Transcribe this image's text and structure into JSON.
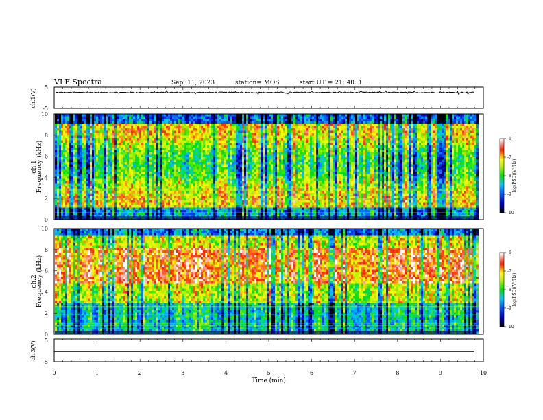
{
  "header": {
    "title": "VLF Spectra",
    "date": "Sep. 11, 2023",
    "station": "station= MOS",
    "start": "start  UT  =   21: 40: 1"
  },
  "chart_data": [
    {
      "type": "line",
      "panel": "ch1-waveform",
      "ylabel": "ch.1(V)",
      "ylim": [
        -5,
        5
      ],
      "yticks": [
        "5",
        "-5"
      ],
      "xlim": [
        0,
        10
      ],
      "series": [
        {
          "approx_level": 2.5,
          "noise": "small"
        }
      ]
    },
    {
      "type": "heatmap",
      "panel": "ch1-spectrogram",
      "ylabel": "ch.1\nFrequency (kHz)",
      "ylim": [
        0,
        10
      ],
      "yticks": [
        "0",
        "2",
        "4",
        "6",
        "8",
        "10"
      ],
      "xlim": [
        0,
        10
      ],
      "colorbar": {
        "label": "log(PSD)(V²/Hz)",
        "range": [
          -10,
          -6
        ],
        "ticks": [
          "-6",
          "-7",
          "-8",
          "-9",
          "-10"
        ]
      },
      "data_end_min": 9.85,
      "character": "broadband vertical striping across full 0-10 kHz band, intensity mostly -7 to -8"
    },
    {
      "type": "heatmap",
      "panel": "ch2-spectrogram",
      "ylabel": "ch.2\nFrequency (kHz)",
      "ylim": [
        0,
        10
      ],
      "yticks": [
        "0",
        "2",
        "4",
        "6",
        "8",
        "10"
      ],
      "xlim": [
        0,
        10
      ],
      "colorbar": {
        "label": "log(PSD)(V²/Hz)",
        "range": [
          -10,
          -6
        ],
        "ticks": [
          "-6",
          "-7",
          "-8",
          "-9",
          "-10"
        ]
      },
      "data_end_min": 9.85,
      "character": "strong red band between ~5 and ~8 kHz, green/blue below ~3 kHz"
    },
    {
      "type": "line",
      "panel": "ch3-waveform",
      "ylabel": "ch.3(V)",
      "ylim": [
        -5,
        5
      ],
      "yticks": [
        "5",
        "-5"
      ],
      "xlim": [
        0,
        10
      ],
      "xlabel": "Time  (min)",
      "xticks": [
        "0",
        "1",
        "2",
        "3",
        "4",
        "5",
        "6",
        "7",
        "8",
        "9",
        "10"
      ],
      "series": [
        {
          "approx_level": 0,
          "noise": "none"
        }
      ]
    }
  ]
}
